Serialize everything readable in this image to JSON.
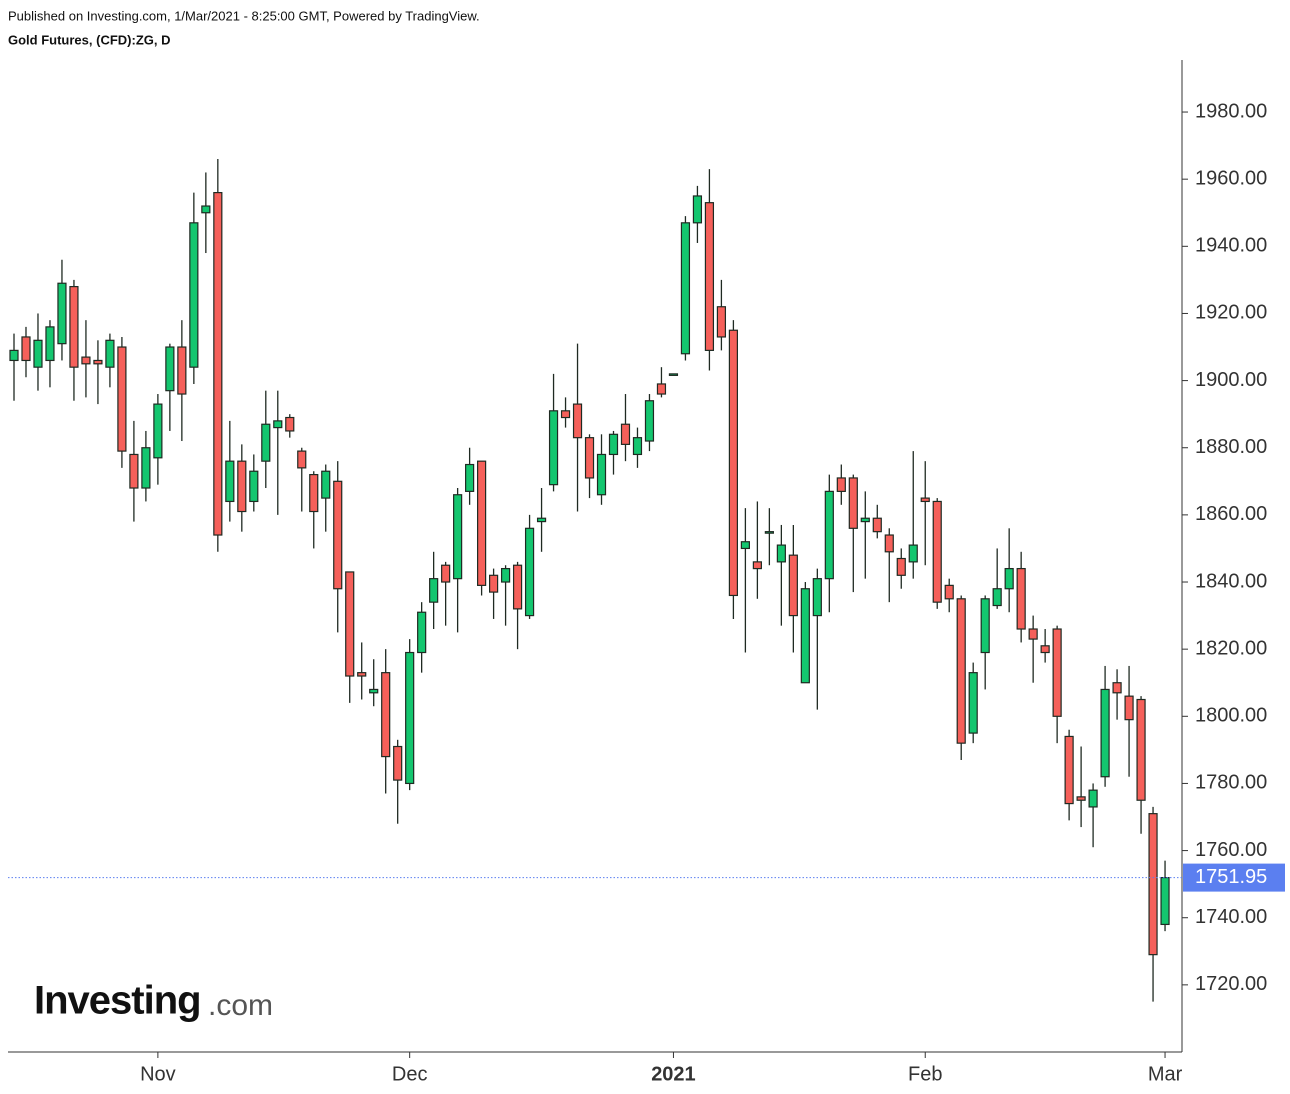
{
  "header": {
    "published": "Published on Investing.com, 1/Mar/2021 - 8:25:00 GMT, Powered by TradingView.",
    "instrument": "Gold Futures, (CFD):ZG, D"
  },
  "logo": {
    "name": "Investing",
    "suffix": ".com"
  },
  "chart_data": {
    "type": "candlestick",
    "categories": [
      null,
      null,
      null,
      null,
      null,
      null,
      null,
      null,
      null,
      null,
      null,
      null,
      "Nov",
      null,
      null,
      null,
      null,
      null,
      null,
      null,
      null,
      null,
      null,
      null,
      null,
      null,
      null,
      null,
      null,
      null,
      null,
      null,
      null,
      "Dec",
      null,
      null,
      null,
      null,
      null,
      null,
      null,
      null,
      null,
      null,
      null,
      null,
      null,
      null,
      null,
      null,
      null,
      null,
      null,
      null,
      null,
      "2021",
      null,
      null,
      null,
      null,
      null,
      null,
      null,
      null,
      null,
      null,
      null,
      null,
      null,
      null,
      null,
      null,
      null,
      null,
      null,
      null,
      "Feb",
      null,
      null,
      null,
      null,
      null,
      null,
      null,
      null,
      null,
      null,
      null,
      null,
      null,
      null,
      null,
      null,
      null,
      null,
      null,
      "Mar"
    ],
    "open": [
      1906,
      1913,
      1904,
      1906,
      1911,
      1928,
      1907,
      1906,
      1904,
      1910,
      1878,
      1868,
      1877,
      1897,
      1910,
      1904,
      1950,
      1956,
      1864,
      1876,
      1864,
      1876,
      1886,
      1889,
      1879,
      1872,
      1865,
      1870,
      1843,
      1813,
      1807,
      1813,
      1791,
      1780,
      1819,
      1834,
      1845,
      1841,
      1867,
      1876,
      1842,
      1840,
      1845,
      1830,
      1858,
      1869,
      1891,
      1893,
      1883,
      1866,
      1878,
      1887,
      1878,
      1882,
      1899,
      1902,
      1908,
      1947,
      1953,
      1922,
      1915,
      1850,
      1846,
      1855,
      1846,
      1848,
      1810,
      1830,
      1841,
      1871,
      1871,
      1858,
      1859,
      1854,
      1847,
      1846,
      1865,
      1864,
      1839,
      1835,
      1795,
      1819,
      1833,
      1838,
      1844,
      1826,
      1821,
      1826,
      1794,
      1776,
      1773,
      1782,
      1810,
      1806,
      1805,
      1771,
      1738
    ],
    "high": [
      1914,
      1916,
      1920,
      1918,
      1936,
      1930,
      1918,
      1912,
      1914,
      1913,
      1888,
      1885,
      1896,
      1911,
      1918,
      1956,
      1962,
      1966,
      1888,
      1881,
      1878,
      1897,
      1897,
      1890,
      1880,
      1873,
      1875,
      1876,
      1843,
      1822,
      1817,
      1820,
      1793,
      1823,
      1834,
      1849,
      1846,
      1868,
      1880,
      1876,
      1844,
      1845,
      1846,
      1860,
      1868,
      1902,
      1895,
      1911,
      1884,
      1884,
      1885,
      1896,
      1886,
      1896,
      1904,
      1902,
      1949,
      1958,
      1963,
      1930,
      1918,
      1862,
      1864,
      1862,
      1857,
      1857,
      1840,
      1844,
      1872,
      1875,
      1872,
      1867,
      1863,
      1856,
      1850,
      1879,
      1876,
      1865,
      1841,
      1836,
      1816,
      1836,
      1850,
      1856,
      1849,
      1830,
      1826,
      1827,
      1796,
      1791,
      1780,
      1815,
      1814,
      1815,
      1806,
      1773,
      1757
    ],
    "low": [
      1894,
      1901,
      1897,
      1898,
      1906,
      1894,
      1895,
      1893,
      1898,
      1874,
      1858,
      1864,
      1869,
      1885,
      1882,
      1899,
      1938,
      1849,
      1858,
      1855,
      1861,
      1868,
      1860,
      1883,
      1861,
      1850,
      1855,
      1825,
      1804,
      1805,
      1803,
      1777,
      1768,
      1778,
      1813,
      1826,
      1827,
      1825,
      1863,
      1836,
      1829,
      1827,
      1820,
      1829,
      1849,
      1867,
      1886,
      1861,
      1865,
      1863,
      1872,
      1876,
      1874,
      1879,
      1895,
      1902,
      1906,
      1941,
      1903,
      1909,
      1829,
      1819,
      1835,
      1845,
      1827,
      1819,
      1810,
      1802,
      1831,
      1863,
      1837,
      1841,
      1853,
      1834,
      1838,
      1841,
      1845,
      1832,
      1831,
      1787,
      1792,
      1808,
      1832,
      1831,
      1822,
      1810,
      1816,
      1792,
      1769,
      1767,
      1761,
      1779,
      1799,
      1782,
      1765,
      1715,
      1736
    ],
    "close": [
      1909,
      1906,
      1912,
      1916,
      1929,
      1904,
      1905,
      1905,
      1912,
      1879,
      1868,
      1880,
      1893,
      1910,
      1896,
      1947,
      1952,
      1854,
      1876,
      1861,
      1873,
      1887,
      1888,
      1885,
      1874,
      1861,
      1873,
      1838,
      1812,
      1812,
      1808,
      1788,
      1781,
      1819,
      1831,
      1841,
      1840,
      1866,
      1875,
      1839,
      1837,
      1844,
      1832,
      1856,
      1859,
      1891,
      1889,
      1883,
      1871,
      1878,
      1884,
      1881,
      1883,
      1894,
      1896,
      1902,
      1947,
      1955,
      1909,
      1913,
      1836,
      1852,
      1844,
      1855,
      1851,
      1830,
      1838,
      1841,
      1867,
      1867,
      1856,
      1859,
      1855,
      1849,
      1842,
      1851,
      1864,
      1834,
      1835,
      1792,
      1813,
      1835,
      1838,
      1844,
      1826,
      1823,
      1819,
      1800,
      1774,
      1775,
      1778,
      1808,
      1807,
      1799,
      1775,
      1729,
      1751.95
    ],
    "up_color": "#14c66f",
    "down_color": "#f5605a",
    "outline_color": "#1f2a22",
    "last_line_color": "#5b7ff0",
    "ylim": [
      1700,
      1995.5
    ],
    "yticks": [
      {
        "value": 1720,
        "label": "1720.00"
      },
      {
        "value": 1740,
        "label": "1740.00"
      },
      {
        "value": 1760,
        "label": "1760.00"
      },
      {
        "value": 1780,
        "label": "1780.00"
      },
      {
        "value": 1800,
        "label": "1800.00"
      },
      {
        "value": 1820,
        "label": "1820.00"
      },
      {
        "value": 1840,
        "label": "1840.00"
      },
      {
        "value": 1860,
        "label": "1860.00"
      },
      {
        "value": 1880,
        "label": "1880.00"
      },
      {
        "value": 1900,
        "label": "1900.00"
      },
      {
        "value": 1920,
        "label": "1920.00"
      },
      {
        "value": 1940,
        "label": "1940.00"
      },
      {
        "value": 1960,
        "label": "1960.00"
      },
      {
        "value": 1980,
        "label": "1980.00"
      }
    ],
    "grid": false
  }
}
